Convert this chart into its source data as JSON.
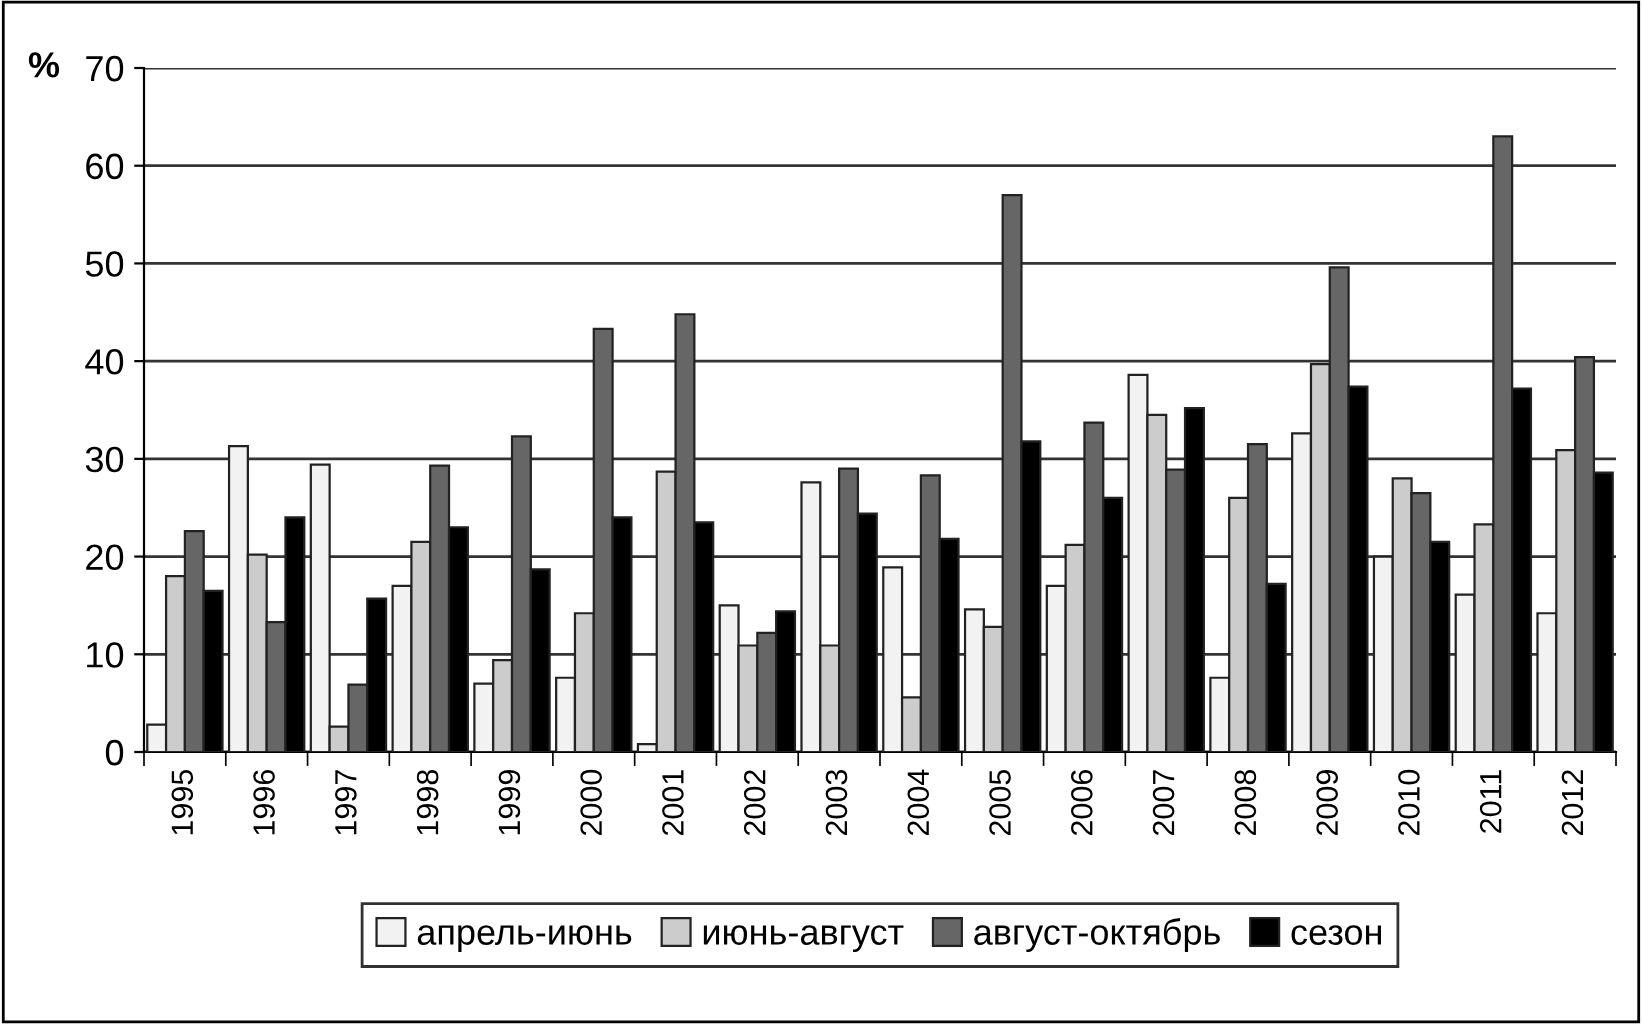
{
  "chart_data": {
    "type": "bar",
    "ylabel": "%",
    "categories": [
      "1995",
      "1996",
      "1997",
      "1998",
      "1999",
      "2000",
      "2001",
      "2002",
      "2003",
      "2004",
      "2005",
      "2006",
      "2007",
      "2008",
      "2009",
      "2010",
      "2011",
      "2012"
    ],
    "series": [
      {
        "name": "апрель-июнь",
        "color": "#f2f2f2",
        "values": [
          2.8,
          31.3,
          29.4,
          17,
          7,
          7.6,
          0.8,
          15,
          27.6,
          18.9,
          14.6,
          17,
          38.6,
          7.6,
          32.6,
          20,
          16.1,
          14.2
        ]
      },
      {
        "name": "июнь-август",
        "color": "#cccccc",
        "values": [
          18,
          20.2,
          2.6,
          21.5,
          9.4,
          14.2,
          28.7,
          10.9,
          10.9,
          5.6,
          12.8,
          21.2,
          34.5,
          26,
          39.7,
          28,
          23.3,
          30.9
        ]
      },
      {
        "name": "август-октябрь",
        "color": "#666666",
        "values": [
          22.6,
          13.3,
          6.9,
          29.3,
          32.3,
          43.3,
          44.8,
          12.2,
          29,
          28.3,
          57,
          33.7,
          28.9,
          31.5,
          49.6,
          26.5,
          63,
          40.4
        ]
      },
      {
        "name": "сезон",
        "color": "#000000",
        "values": [
          16.5,
          24,
          15.7,
          23,
          18.7,
          24,
          23.5,
          14.4,
          24.4,
          21.8,
          31.8,
          26,
          35.2,
          17.2,
          37.4,
          21.5,
          37.2,
          28.6
        ]
      }
    ],
    "ylim": [
      0,
      70
    ],
    "yticks": [
      0,
      10,
      20,
      30,
      40,
      50,
      60,
      70
    ],
    "grid": "y",
    "legend": "bottom"
  }
}
